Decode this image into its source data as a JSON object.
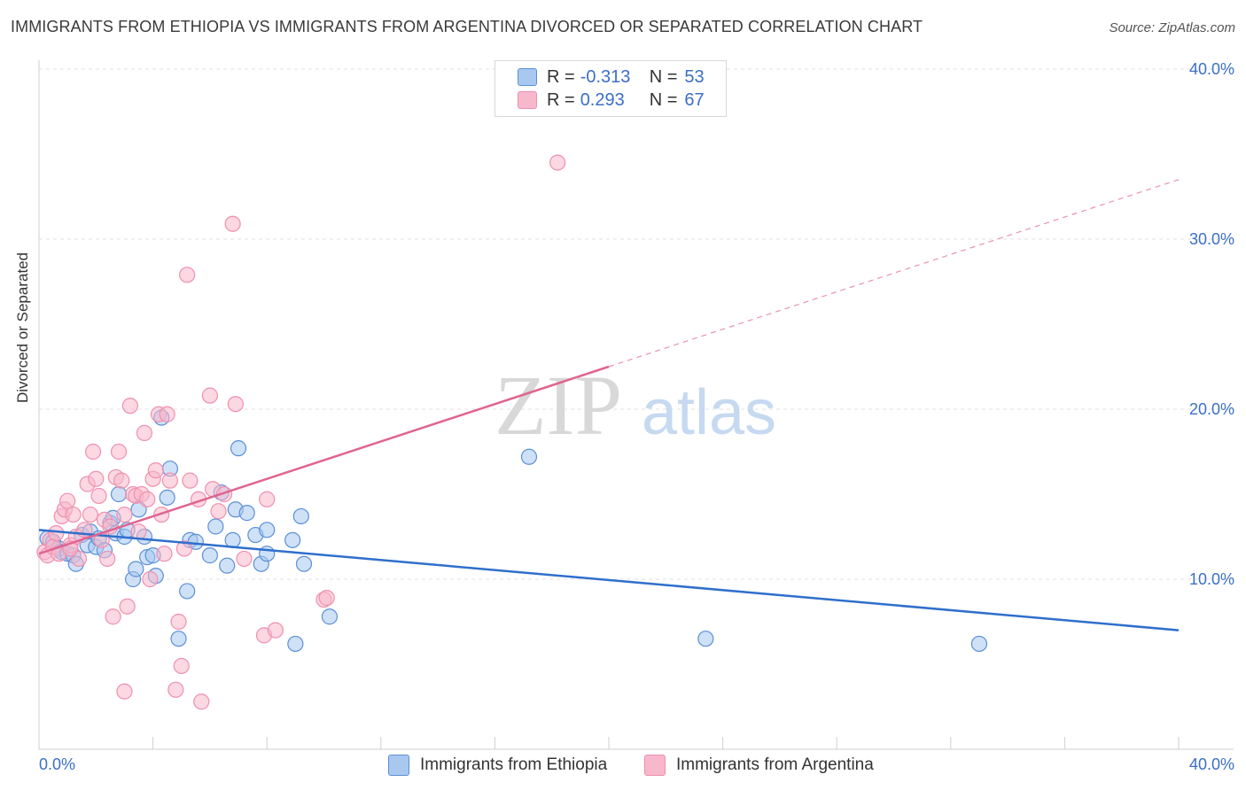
{
  "title": "IMMIGRANTS FROM ETHIOPIA VS IMMIGRANTS FROM ARGENTINA DIVORCED OR SEPARATED CORRELATION CHART",
  "source": "Source: ZipAtlas.com",
  "watermark": {
    "zip": "ZIP",
    "atlas": "atlas"
  },
  "legend_top": [
    {
      "r_label": "R =",
      "r_value": "-0.313",
      "n_label": "N =",
      "n_value": "53",
      "color": "#a8c8f0"
    },
    {
      "r_label": "R =",
      "r_value": " 0.293",
      "n_label": "N =",
      "n_value": "67",
      "color": "#f7b8cb"
    }
  ],
  "legend_bottom": [
    {
      "label": "Immigrants from Ethiopia",
      "color": "#a8c8f0"
    },
    {
      "label": "Immigrants from Argentina",
      "color": "#f7b8cb"
    }
  ],
  "chart_data": {
    "type": "scatter",
    "xlabel": "",
    "ylabel": "Divorced or Separated",
    "xlim": [
      0,
      40
    ],
    "ylim": [
      0,
      40
    ],
    "x_tick_labels": [
      "0.0%",
      "40.0%"
    ],
    "y_ticks": [
      10,
      20,
      30,
      40
    ],
    "y_tick_labels": [
      "10.0%",
      "20.0%",
      "30.0%",
      "40.0%"
    ],
    "grid": true,
    "series": [
      {
        "name": "Immigrants from Ethiopia",
        "color": "#5b8fd6",
        "fill": "#a8c8f0",
        "trend_color": "#2f6fcc",
        "trend": {
          "x0": 0,
          "y0": 12.9,
          "x1": 40,
          "y1": 7.0,
          "dashed_from": null
        },
        "points": [
          [
            0.3,
            12.4
          ],
          [
            0.5,
            12.2
          ],
          [
            0.7,
            11.8
          ],
          [
            0.8,
            11.6
          ],
          [
            1.0,
            11.5
          ],
          [
            1.2,
            11.4
          ],
          [
            1.3,
            10.9
          ],
          [
            1.5,
            12.6
          ],
          [
            1.7,
            12.0
          ],
          [
            1.8,
            12.8
          ],
          [
            2.0,
            11.9
          ],
          [
            2.1,
            12.4
          ],
          [
            2.3,
            11.7
          ],
          [
            2.5,
            13.3
          ],
          [
            2.6,
            13.6
          ],
          [
            2.7,
            12.7
          ],
          [
            2.8,
            15.0
          ],
          [
            3.0,
            12.5
          ],
          [
            3.1,
            12.9
          ],
          [
            3.3,
            10.0
          ],
          [
            3.4,
            10.6
          ],
          [
            3.5,
            14.1
          ],
          [
            3.7,
            12.5
          ],
          [
            3.8,
            11.3
          ],
          [
            4.0,
            11.4
          ],
          [
            4.1,
            10.2
          ],
          [
            4.3,
            19.5
          ],
          [
            4.5,
            14.8
          ],
          [
            4.6,
            16.5
          ],
          [
            4.9,
            6.5
          ],
          [
            5.2,
            9.3
          ],
          [
            5.3,
            12.3
          ],
          [
            5.5,
            12.2
          ],
          [
            6.0,
            11.4
          ],
          [
            6.2,
            13.1
          ],
          [
            6.4,
            15.1
          ],
          [
            6.6,
            10.8
          ],
          [
            6.8,
            12.3
          ],
          [
            6.9,
            14.1
          ],
          [
            7.0,
            17.7
          ],
          [
            7.3,
            13.9
          ],
          [
            7.6,
            12.6
          ],
          [
            7.8,
            10.9
          ],
          [
            8.0,
            12.9
          ],
          [
            8.0,
            11.5
          ],
          [
            8.9,
            12.3
          ],
          [
            9.0,
            6.2
          ],
          [
            9.2,
            13.7
          ],
          [
            9.3,
            10.9
          ],
          [
            10.2,
            7.8
          ],
          [
            17.2,
            17.2
          ],
          [
            23.4,
            6.5
          ],
          [
            33.0,
            6.2
          ]
        ]
      },
      {
        "name": "Immigrants from Argentina",
        "color": "#f08fb0",
        "fill": "#f7b8cb",
        "trend_color": "#e06490",
        "trend": {
          "x0": 0,
          "y0": 11.5,
          "x1": 40,
          "y1": 33.5,
          "dashed_from": 20
        },
        "points": [
          [
            0.2,
            11.6
          ],
          [
            0.3,
            11.4
          ],
          [
            0.4,
            12.3
          ],
          [
            0.5,
            11.9
          ],
          [
            0.6,
            12.7
          ],
          [
            0.7,
            11.5
          ],
          [
            0.8,
            13.7
          ],
          [
            0.9,
            14.1
          ],
          [
            1.0,
            14.6
          ],
          [
            1.1,
            12.0
          ],
          [
            1.2,
            13.8
          ],
          [
            1.3,
            12.5
          ],
          [
            1.4,
            11.2
          ],
          [
            1.6,
            12.9
          ],
          [
            1.7,
            15.6
          ],
          [
            1.8,
            13.8
          ],
          [
            1.9,
            17.5
          ],
          [
            2.0,
            15.9
          ],
          [
            2.1,
            14.9
          ],
          [
            2.2,
            12.3
          ],
          [
            2.3,
            13.5
          ],
          [
            2.4,
            11.2
          ],
          [
            2.5,
            13.1
          ],
          [
            2.6,
            7.8
          ],
          [
            2.7,
            16.0
          ],
          [
            2.8,
            17.5
          ],
          [
            2.9,
            15.8
          ],
          [
            3.0,
            13.8
          ],
          [
            3.1,
            8.4
          ],
          [
            3.2,
            20.2
          ],
          [
            3.3,
            15.0
          ],
          [
            3.4,
            14.9
          ],
          [
            3.5,
            12.8
          ],
          [
            3.6,
            15.0
          ],
          [
            3.7,
            18.6
          ],
          [
            3.8,
            14.7
          ],
          [
            3.9,
            10.0
          ],
          [
            4.0,
            15.9
          ],
          [
            4.1,
            16.4
          ],
          [
            4.2,
            19.7
          ],
          [
            4.3,
            13.8
          ],
          [
            4.4,
            11.5
          ],
          [
            4.5,
            19.7
          ],
          [
            4.6,
            15.8
          ],
          [
            4.8,
            3.5
          ],
          [
            4.9,
            7.5
          ],
          [
            5.0,
            4.9
          ],
          [
            5.1,
            11.8
          ],
          [
            5.2,
            27.9
          ],
          [
            5.3,
            15.8
          ],
          [
            5.6,
            14.7
          ],
          [
            5.7,
            2.8
          ],
          [
            6.0,
            20.8
          ],
          [
            6.1,
            15.3
          ],
          [
            6.3,
            14.0
          ],
          [
            6.5,
            15.0
          ],
          [
            6.8,
            30.9
          ],
          [
            6.9,
            20.3
          ],
          [
            7.2,
            11.2
          ],
          [
            7.9,
            6.7
          ],
          [
            8.0,
            14.7
          ],
          [
            8.3,
            7.0
          ],
          [
            10.0,
            8.8
          ],
          [
            10.1,
            8.9
          ],
          [
            18.2,
            34.5
          ],
          [
            3.0,
            3.4
          ],
          [
            1.1,
            11.8
          ]
        ]
      }
    ]
  }
}
